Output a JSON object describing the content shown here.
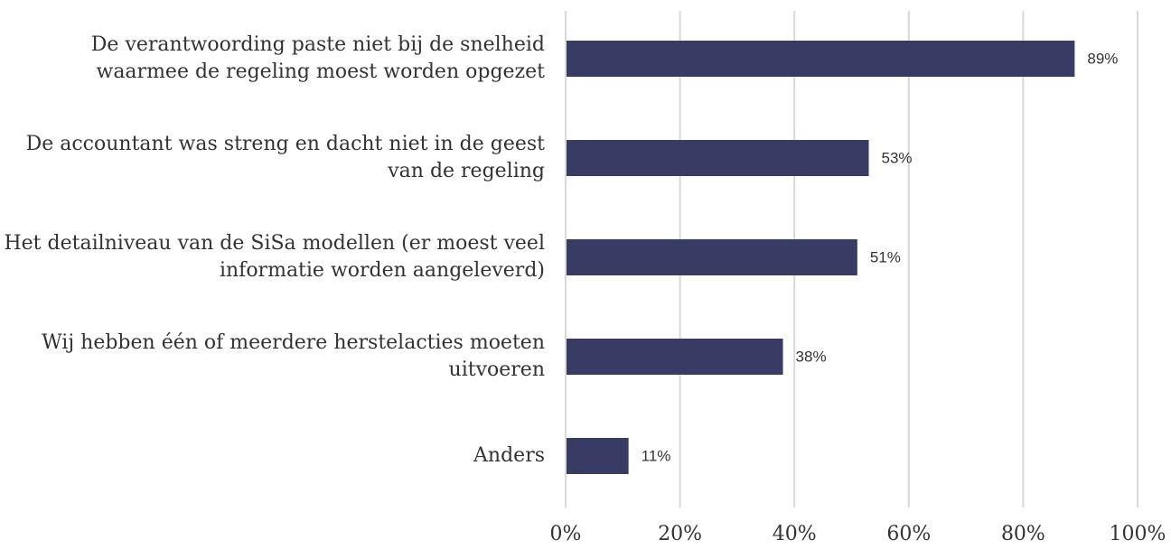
{
  "chart_data": {
    "type": "bar",
    "orientation": "horizontal",
    "categories": [
      "De verantwoording paste niet bij de snelheid waarmee de regeling moest worden opgezet",
      "De accountant was streng en dacht niet in de geest van de regeling",
      "Het detailniveau van de SiSa modellen (er moest veel informatie worden aangeleverd)",
      "Wij hebben één of meerdere herstelacties moeten uitvoeren",
      "Anders"
    ],
    "values": [
      89,
      53,
      51,
      38,
      11
    ],
    "value_labels": [
      "89%",
      "53%",
      "51%",
      "38%",
      "11%"
    ],
    "color": "#383c65",
    "xlim": [
      0,
      100
    ],
    "xticks": [
      {
        "value": 0,
        "label": "0%"
      },
      {
        "value": 20,
        "label": "20%"
      },
      {
        "value": 40,
        "label": "40%"
      },
      {
        "value": 60,
        "label": "60%"
      },
      {
        "value": 80,
        "label": "80%"
      },
      {
        "value": 100,
        "label": "100%"
      }
    ],
    "grid": true
  }
}
